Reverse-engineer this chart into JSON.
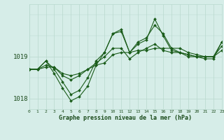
{
  "xlabel": "Graphe pression niveau de la mer (hPa)",
  "hours": [
    0,
    1,
    2,
    3,
    4,
    5,
    6,
    7,
    8,
    9,
    10,
    11,
    12,
    13,
    14,
    15,
    16,
    17,
    18,
    19,
    20,
    21,
    22,
    23
  ],
  "series": [
    [
      1018.7,
      1018.7,
      1018.75,
      1018.75,
      1018.6,
      1018.55,
      1018.6,
      1018.7,
      1018.8,
      1018.85,
      1019.05,
      1019.1,
      1019.1,
      1019.15,
      1019.15,
      1019.2,
      1019.2,
      1019.2,
      1019.2,
      1019.1,
      1019.05,
      1019.0,
      1019.0,
      1019.15
    ],
    [
      1018.7,
      1018.7,
      1018.8,
      1018.75,
      1018.55,
      1018.45,
      1018.55,
      1018.7,
      1018.85,
      1019.0,
      1019.2,
      1019.2,
      1018.95,
      1019.1,
      1019.2,
      1019.3,
      1019.15,
      1019.1,
      1019.1,
      1019.05,
      1019.0,
      1019.0,
      1019.0,
      1019.25
    ],
    [
      1018.7,
      1018.7,
      1018.9,
      1018.7,
      1018.4,
      1018.1,
      1018.2,
      1018.5,
      1018.9,
      1019.1,
      1019.55,
      1019.6,
      1019.1,
      1019.35,
      1019.45,
      1019.75,
      1019.55,
      1019.2,
      1019.1,
      1019.05,
      1019.0,
      1019.0,
      1019.0,
      1019.35
    ],
    [
      1018.7,
      1018.7,
      1018.9,
      1018.6,
      1018.25,
      1017.95,
      1018.05,
      1018.3,
      1018.8,
      1019.1,
      1019.55,
      1019.65,
      1019.1,
      1019.3,
      1019.4,
      1019.9,
      1019.5,
      1019.15,
      1019.1,
      1019.0,
      1019.0,
      1018.95,
      1018.95,
      1019.35
    ]
  ],
  "bg_color": "#d6ede8",
  "grid_color": "#b8d8ce",
  "line_color": "#1a5c1a",
  "marker_color": "#1a5c1a",
  "text_color": "#1a4a1a",
  "ylim": [
    1017.75,
    1020.25
  ],
  "ytick_values": [
    1018,
    1019
  ],
  "xlim": [
    0,
    23
  ]
}
